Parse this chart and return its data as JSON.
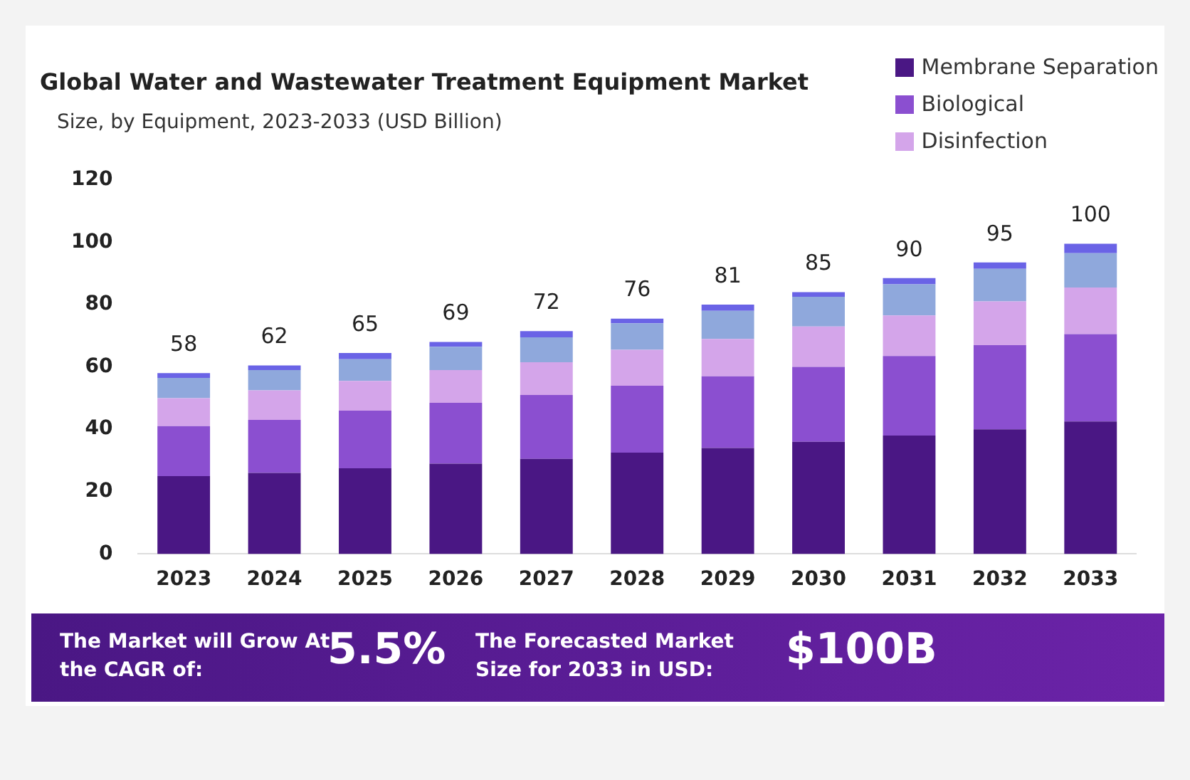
{
  "chart_data": {
    "type": "bar",
    "title": "Global Water and Wastewater Treatment Equipment  Market",
    "subtitle": "Size, by Equipment, 2023-2033 (USD Billion)",
    "categories": [
      "2023",
      "2024",
      "2025",
      "2026",
      "2027",
      "2028",
      "2029",
      "2030",
      "2031",
      "2032",
      "2033"
    ],
    "stacked": true,
    "series": [
      {
        "name": "Membrane Separation",
        "color": "#4a1784",
        "values": [
          25,
          26,
          27.5,
          29,
          30.5,
          32.5,
          34,
          36,
          38,
          40,
          42.5
        ]
      },
      {
        "name": "Biological",
        "color": "#8b4fd0",
        "values": [
          16,
          17,
          18.5,
          19.5,
          20.5,
          21.5,
          23,
          24,
          25.5,
          27,
          28
        ]
      },
      {
        "name": "Disinfection",
        "color": "#d4a5ea",
        "values": [
          9,
          9.5,
          9.5,
          10.5,
          10.5,
          11.5,
          12,
          13,
          13,
          14,
          15
        ]
      },
      {
        "color": "#8fa8dc",
        "values": [
          6.5,
          6.5,
          7,
          7.5,
          8,
          8.5,
          9,
          9.5,
          10,
          10.5,
          11
        ]
      },
      {
        "color": "#6a63e6",
        "values": [
          1.5,
          1.5,
          2,
          1.5,
          2,
          1.5,
          2,
          1.5,
          2,
          2,
          3
        ]
      }
    ],
    "totals": [
      "58",
      "62",
      "65",
      "69",
      "72",
      "76",
      "81",
      "85",
      "90",
      "95",
      "100"
    ],
    "ylim": [
      0,
      120
    ],
    "yticks": [
      0,
      20,
      40,
      60,
      80,
      100,
      120
    ],
    "grid": false,
    "legend": "top right",
    "annotations": [
      "The Market will Grow At the CAGR of:",
      "5.5%",
      "The Forecasted Market Size for 2033 in USD:",
      "$100B"
    ]
  }
}
